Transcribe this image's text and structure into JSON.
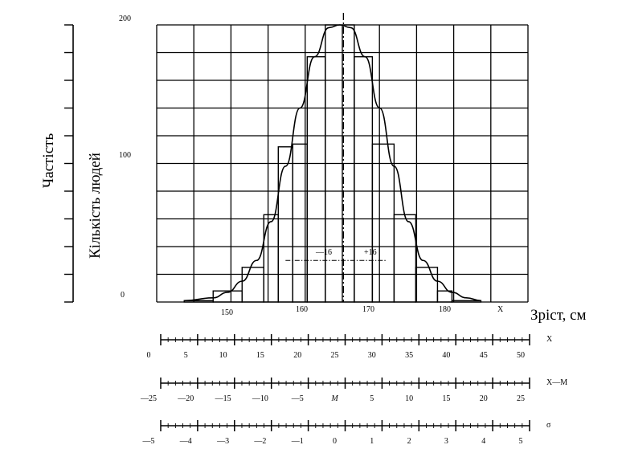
{
  "chart_data": {
    "type": "bar",
    "left_label_1": "Частість",
    "left_label_2": "Кількість людей",
    "xlabel": "Зріст, см",
    "x_end_label": "X",
    "y_ticks": [
      "200",
      "100",
      "0"
    ],
    "x_ticks": [
      "150",
      "160",
      "170",
      "180"
    ],
    "ylim": [
      0,
      200
    ],
    "grid": true,
    "bins": [
      {
        "from": 146,
        "to": 150,
        "value": 1
      },
      {
        "from": 150,
        "to": 154,
        "value": 8
      },
      {
        "from": 154,
        "to": 157,
        "value": 25
      },
      {
        "from": 157,
        "to": 159,
        "value": 63
      },
      {
        "from": 159,
        "to": 161,
        "value": 112
      },
      {
        "from": 161,
        "to": 163,
        "value": 114
      },
      {
        "from": 163,
        "to": 165.5,
        "value": 177
      },
      {
        "from": 165.5,
        "to": 169.5,
        "value": 200
      },
      {
        "from": 169.5,
        "to": 172,
        "value": 177
      },
      {
        "from": 172,
        "to": 175,
        "value": 114
      },
      {
        "from": 175,
        "to": 178,
        "value": 63
      },
      {
        "from": 178,
        "to": 181,
        "value": 25
      },
      {
        "from": 181,
        "to": 183,
        "value": 8
      },
      {
        "from": 183,
        "to": 187,
        "value": 1
      }
    ],
    "curve": [
      [
        146,
        1
      ],
      [
        150,
        3
      ],
      [
        152,
        7
      ],
      [
        154,
        15
      ],
      [
        156,
        30
      ],
      [
        158,
        58
      ],
      [
        160,
        98
      ],
      [
        162,
        140
      ],
      [
        164,
        177
      ],
      [
        166,
        198
      ],
      [
        167.5,
        200
      ],
      [
        169,
        198
      ],
      [
        171,
        177
      ],
      [
        173,
        140
      ],
      [
        175,
        98
      ],
      [
        177,
        58
      ],
      [
        179,
        30
      ],
      [
        181,
        15
      ],
      [
        183,
        7
      ],
      [
        185,
        3
      ],
      [
        187,
        1
      ]
    ],
    "mean_line": 168,
    "sigma_marker": {
      "minus": "—16",
      "plus": "+16",
      "from": 160,
      "to": 174,
      "y": 30
    },
    "scales": [
      {
        "name": "X",
        "ticks": [
          "0",
          "5",
          "10",
          "15",
          "20",
          "25",
          "30",
          "35",
          "40",
          "45",
          "50"
        ]
      },
      {
        "name": "X—M",
        "ticks": [
          "—25",
          "—20",
          "—15",
          "—10",
          "—5",
          "M",
          "5",
          "10",
          "15",
          "20",
          "25"
        ]
      },
      {
        "name": "σ",
        "ticks": [
          "—5",
          "—4",
          "—3",
          "—2",
          "—1",
          "0",
          "1",
          "2",
          "3",
          "4",
          "5"
        ]
      }
    ]
  }
}
